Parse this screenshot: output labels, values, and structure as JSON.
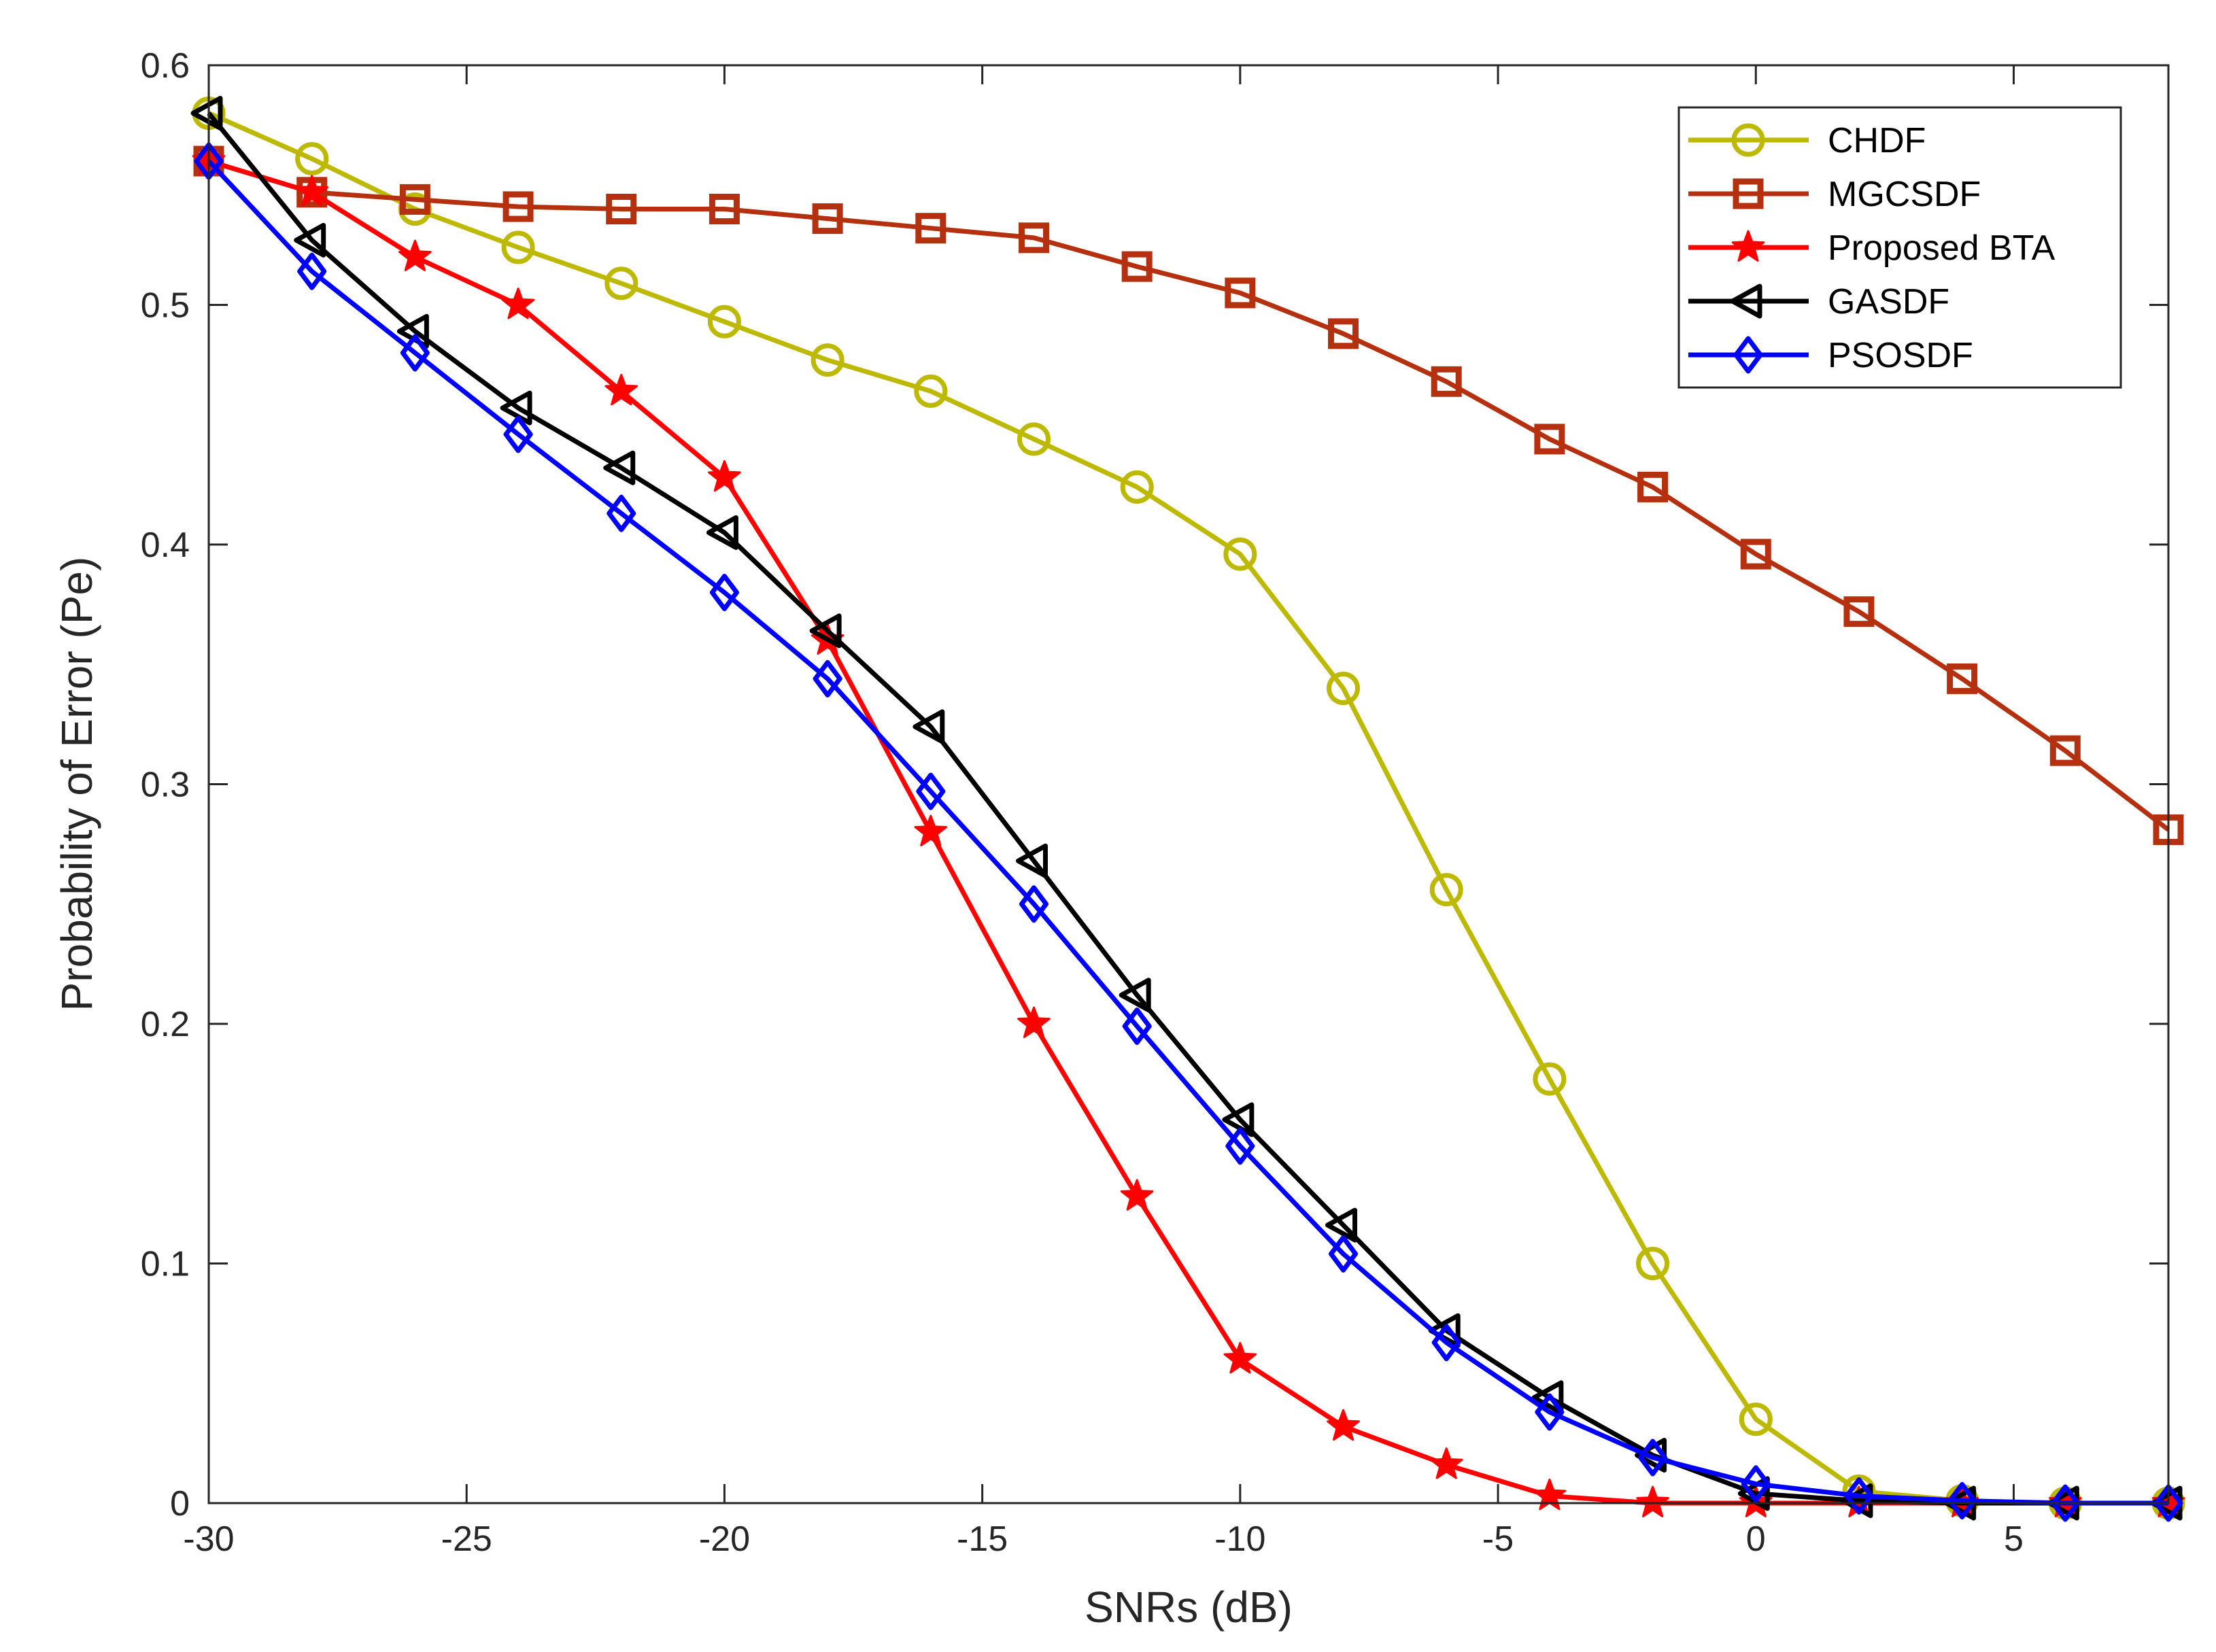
{
  "chart_data": {
    "type": "line",
    "title": "",
    "xlabel": "SNRs (dB)",
    "ylabel": "Probability of Error (Pe)",
    "xlim": [
      -30,
      8
    ],
    "ylim": [
      0,
      0.6
    ],
    "xticks": [
      -30,
      -25,
      -20,
      -15,
      -10,
      -5,
      0,
      5
    ],
    "xtick_labels": [
      "-30",
      "-25",
      "-20",
      "-15",
      "-10",
      "-5",
      "0",
      "5"
    ],
    "yticks": [
      0,
      0.1,
      0.2,
      0.3,
      0.4,
      0.5,
      0.6
    ],
    "ytick_labels": [
      "0",
      "0.1",
      "0.2",
      "0.3",
      "0.4",
      "0.5",
      "0.6"
    ],
    "grid": false,
    "legend_position": "top-right",
    "x": [
      -30,
      -28,
      -26,
      -24,
      -22,
      -20,
      -18,
      -16,
      -14,
      -12,
      -10,
      -8,
      -6,
      -4,
      -2,
      0,
      2,
      4,
      6,
      8
    ],
    "series": [
      {
        "name": "CHDF",
        "color": "#bdb800",
        "marker": "circle",
        "values": [
          0.58,
          0.561,
          0.54,
          0.524,
          0.509,
          0.493,
          0.477,
          0.464,
          0.444,
          0.424,
          0.396,
          0.34,
          0.256,
          0.177,
          0.1,
          0.035,
          0.005,
          0.001,
          0.0,
          0.0
        ]
      },
      {
        "name": "MGCSDF",
        "color": "#b5300f",
        "marker": "square",
        "values": [
          0.56,
          0.547,
          0.544,
          0.541,
          0.54,
          0.54,
          0.536,
          0.532,
          0.528,
          0.516,
          0.505,
          0.488,
          0.468,
          0.444,
          0.424,
          0.396,
          0.372,
          0.344,
          0.314,
          0.281
        ]
      },
      {
        "name": "Proposed BTA",
        "color": "#ff0000",
        "marker": "star",
        "values": [
          0.56,
          0.547,
          0.52,
          0.5,
          0.464,
          0.428,
          0.36,
          0.28,
          0.2,
          0.128,
          0.06,
          0.032,
          0.016,
          0.003,
          0.0,
          0.0,
          0.0,
          0.0,
          0.0,
          0.0
        ]
      },
      {
        "name": "GASDF",
        "color": "#000000",
        "marker": "triangle-left",
        "values": [
          0.58,
          0.527,
          0.489,
          0.457,
          0.432,
          0.405,
          0.364,
          0.324,
          0.268,
          0.212,
          0.16,
          0.116,
          0.072,
          0.044,
          0.02,
          0.004,
          0.001,
          0.0,
          0.0,
          0.0
        ]
      },
      {
        "name": "PSOSDF",
        "color": "#0000ff",
        "marker": "diamond",
        "values": [
          0.56,
          0.514,
          0.48,
          0.446,
          0.413,
          0.38,
          0.344,
          0.297,
          0.25,
          0.199,
          0.149,
          0.104,
          0.067,
          0.038,
          0.019,
          0.008,
          0.003,
          0.001,
          0.0,
          0.0
        ]
      }
    ]
  }
}
